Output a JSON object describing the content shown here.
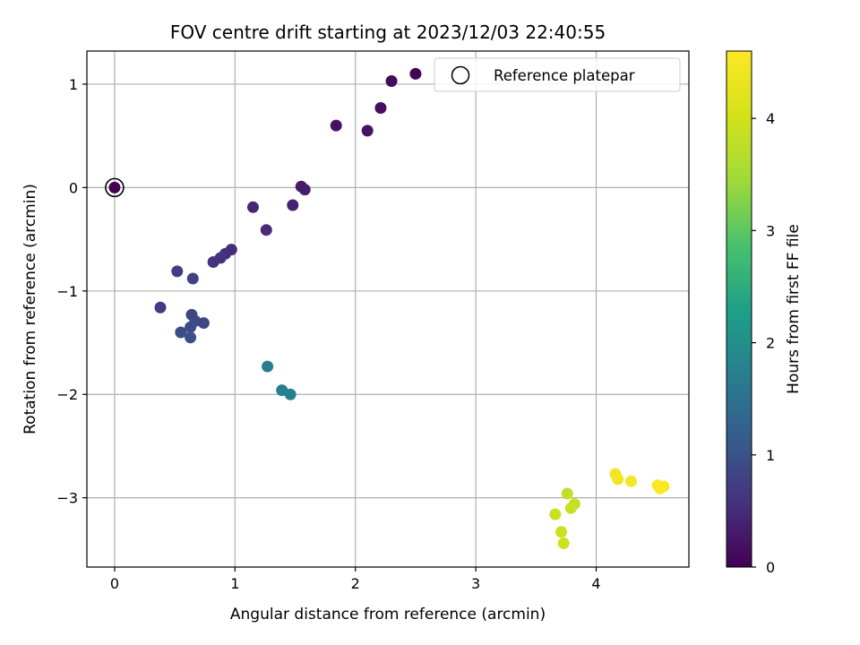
{
  "chart_data": {
    "type": "scatter",
    "title": "FOV centre drift starting at 2023/12/03 22:40:55",
    "xlabel": "Angular distance from reference (arcmin)",
    "ylabel": "Rotation from reference (arcmin)",
    "xlim": [
      -0.23,
      4.77
    ],
    "ylim": [
      -3.67,
      1.32
    ],
    "xticks": [
      0,
      1,
      2,
      3,
      4
    ],
    "yticks": [
      -3,
      -2,
      -1,
      0,
      1
    ],
    "grid": true,
    "legend": {
      "label": "Reference platepar",
      "placement": "top-right"
    },
    "reference_point": {
      "x": 0,
      "y": 0
    },
    "colorbar": {
      "label": "Hours from first FF file",
      "colormap": "viridis",
      "range": [
        0,
        4.6
      ],
      "ticks": [
        0,
        1,
        2,
        3,
        4
      ]
    },
    "points": [
      {
        "x": 0.0,
        "y": 0.0,
        "hours": 0.0
      },
      {
        "x": 2.5,
        "y": 1.1,
        "hours": 0.05
      },
      {
        "x": 2.3,
        "y": 1.03,
        "hours": 0.1
      },
      {
        "x": 2.21,
        "y": 0.77,
        "hours": 0.15
      },
      {
        "x": 1.84,
        "y": 0.6,
        "hours": 0.2
      },
      {
        "x": 2.1,
        "y": 0.55,
        "hours": 0.22
      },
      {
        "x": 1.55,
        "y": 0.01,
        "hours": 0.3
      },
      {
        "x": 1.58,
        "y": -0.02,
        "hours": 0.33
      },
      {
        "x": 1.48,
        "y": -0.17,
        "hours": 0.37
      },
      {
        "x": 1.15,
        "y": -0.19,
        "hours": 0.45
      },
      {
        "x": 1.26,
        "y": -0.41,
        "hours": 0.5
      },
      {
        "x": 0.97,
        "y": -0.6,
        "hours": 0.52
      },
      {
        "x": 0.92,
        "y": -0.64,
        "hours": 0.55
      },
      {
        "x": 0.88,
        "y": -0.68,
        "hours": 0.58
      },
      {
        "x": 0.82,
        "y": -0.72,
        "hours": 0.62
      },
      {
        "x": 0.38,
        "y": -1.16,
        "hours": 0.68
      },
      {
        "x": 0.52,
        "y": -0.81,
        "hours": 0.75
      },
      {
        "x": 0.65,
        "y": -0.88,
        "hours": 0.8
      },
      {
        "x": 0.64,
        "y": -1.23,
        "hours": 0.85
      },
      {
        "x": 0.74,
        "y": -1.31,
        "hours": 0.88
      },
      {
        "x": 0.67,
        "y": -1.29,
        "hours": 0.9
      },
      {
        "x": 0.63,
        "y": -1.35,
        "hours": 0.93
      },
      {
        "x": 0.55,
        "y": -1.4,
        "hours": 0.96
      },
      {
        "x": 0.63,
        "y": -1.45,
        "hours": 0.98
      },
      {
        "x": 1.27,
        "y": -1.73,
        "hours": 1.7
      },
      {
        "x": 1.39,
        "y": -1.96,
        "hours": 1.72
      },
      {
        "x": 1.46,
        "y": -2.0,
        "hours": 1.75
      },
      {
        "x": 3.76,
        "y": -2.96,
        "hours": 3.8
      },
      {
        "x": 3.82,
        "y": -3.06,
        "hours": 3.85
      },
      {
        "x": 3.79,
        "y": -3.1,
        "hours": 3.88
      },
      {
        "x": 3.66,
        "y": -3.16,
        "hours": 3.9
      },
      {
        "x": 3.71,
        "y": -3.33,
        "hours": 3.92
      },
      {
        "x": 3.73,
        "y": -3.44,
        "hours": 3.95
      },
      {
        "x": 4.16,
        "y": -2.77,
        "hours": 4.45
      },
      {
        "x": 4.18,
        "y": -2.82,
        "hours": 4.48
      },
      {
        "x": 4.29,
        "y": -2.84,
        "hours": 4.5
      },
      {
        "x": 4.51,
        "y": -2.88,
        "hours": 4.55
      },
      {
        "x": 4.53,
        "y": -2.91,
        "hours": 4.57
      },
      {
        "x": 4.56,
        "y": -2.89,
        "hours": 4.6
      }
    ]
  }
}
